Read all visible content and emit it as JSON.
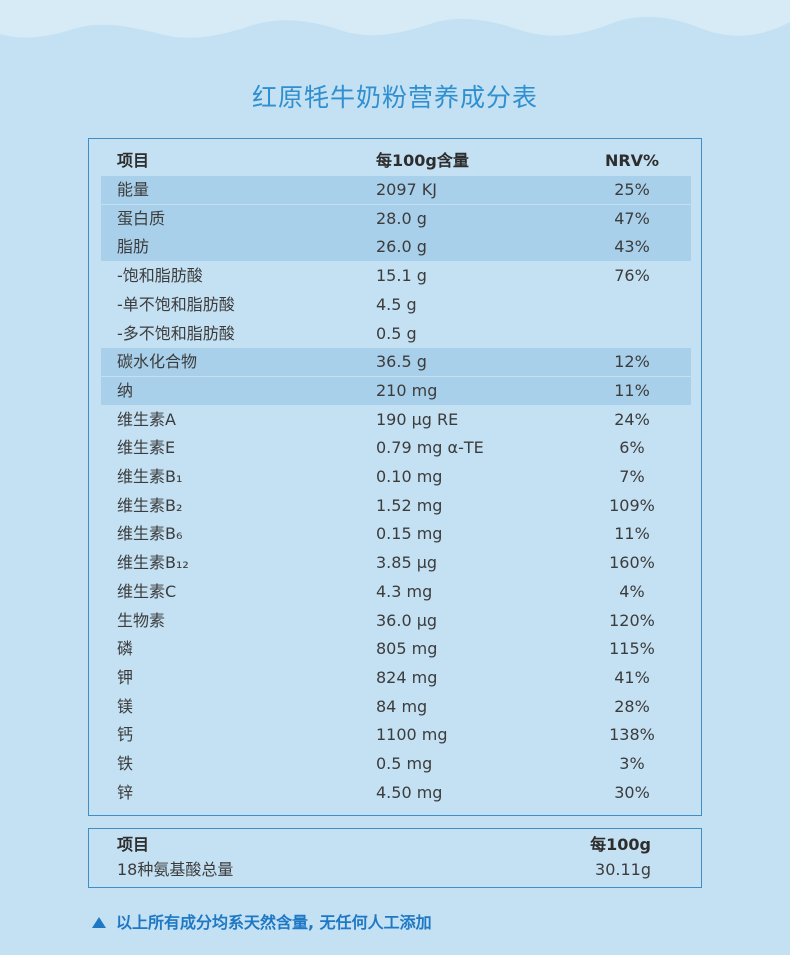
{
  "title": "红原牦牛奶粉营养成分表",
  "nutrition": {
    "headers": {
      "name": "项目",
      "amount": "每100g含量",
      "nrv": "NRV%"
    },
    "rows": [
      {
        "name": "能量",
        "amount": "2097 KJ",
        "nrv": "25%",
        "shaded": true
      },
      {
        "name": "蛋白质",
        "amount": "28.0 g",
        "nrv": "47%",
        "shaded": true
      },
      {
        "name": "脂肪",
        "amount": "26.0 g",
        "nrv": "43%",
        "shaded": true
      },
      {
        "name": "-饱和脂肪酸",
        "amount": "15.1 g",
        "nrv": "76%",
        "shaded": false
      },
      {
        "name": "-单不饱和脂肪酸",
        "amount": "4.5 g",
        "nrv": "",
        "shaded": false
      },
      {
        "name": "-多不饱和脂肪酸",
        "amount": "0.5 g",
        "nrv": "",
        "shaded": false
      },
      {
        "name": "碳水化合物",
        "amount": "36.5 g",
        "nrv": "12%",
        "shaded": true
      },
      {
        "name": "纳",
        "amount": "210 mg",
        "nrv": "11%",
        "shaded": true
      },
      {
        "name": "维生素A",
        "amount": "190 μg  RE",
        "nrv": "24%",
        "shaded": false
      },
      {
        "name": "维生素E",
        "amount": "0.79 mg α-TE",
        "nrv": "6%",
        "shaded": false
      },
      {
        "name": "维生素B₁",
        "amount": "0.10 mg",
        "nrv": "7%",
        "shaded": false
      },
      {
        "name": "维生素B₂",
        "amount": "1.52 mg",
        "nrv": "109%",
        "shaded": false
      },
      {
        "name": "维生素B₆",
        "amount": "0.15 mg",
        "nrv": "11%",
        "shaded": false
      },
      {
        "name": "维生素B₁₂",
        "amount": "3.85 μg",
        "nrv": "160%",
        "shaded": false
      },
      {
        "name": "维生素C",
        "amount": "4.3 mg",
        "nrv": "4%",
        "shaded": false
      },
      {
        "name": "生物素",
        "amount": "36.0 μg",
        "nrv": "120%",
        "shaded": false
      },
      {
        "name": "磷",
        "amount": "805 mg",
        "nrv": "115%",
        "shaded": false
      },
      {
        "name": "钾",
        "amount": "824 mg",
        "nrv": "41%",
        "shaded": false
      },
      {
        "name": "镁",
        "amount": "84 mg",
        "nrv": "28%",
        "shaded": false
      },
      {
        "name": "钙",
        "amount": "1100 mg",
        "nrv": "138%",
        "shaded": false
      },
      {
        "name": "铁",
        "amount": "0.5 mg",
        "nrv": "3%",
        "shaded": false
      },
      {
        "name": "锌",
        "amount": "4.50 mg",
        "nrv": "30%",
        "shaded": false
      }
    ]
  },
  "amino_acids": {
    "header_name": "项目",
    "header_value": "每100g",
    "name": "18种氨基酸总量",
    "value": "30.11g"
  },
  "note": "以上所有成分均系天然含量, 无任何人工添加",
  "colors": {
    "background": "#c4e1f3",
    "shaded_row": "#a9d0ea",
    "accent": "#2f8fd0",
    "border": "#3f8fc6"
  }
}
